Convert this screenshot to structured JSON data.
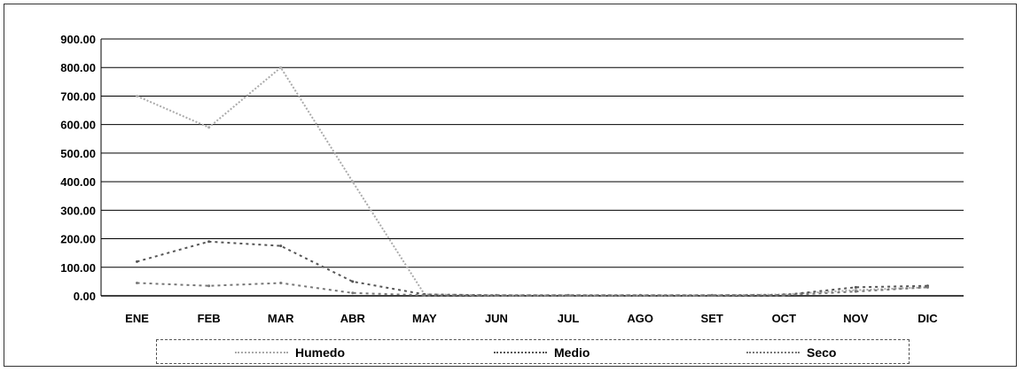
{
  "chart_data": {
    "type": "line",
    "title": "",
    "xlabel": "",
    "ylabel": "",
    "categories": [
      "ENE",
      "FEB",
      "MAR",
      "ABR",
      "MAY",
      "JUN",
      "JUL",
      "AGO",
      "SET",
      "OCT",
      "NOV",
      "DIC"
    ],
    "ylim": [
      0,
      900
    ],
    "yticks": [
      "0.00",
      "100.00",
      "200.00",
      "300.00",
      "400.00",
      "500.00",
      "600.00",
      "700.00",
      "800.00",
      "900.00"
    ],
    "grid": true,
    "legend_position": "bottom",
    "series": [
      {
        "name": "Humedo",
        "color": "#aaaaaa",
        "values": [
          700,
          590,
          800,
          400,
          5,
          2,
          2,
          2,
          2,
          5,
          20,
          30
        ]
      },
      {
        "name": "Medio",
        "color": "#555555",
        "values": [
          120,
          190,
          175,
          50,
          5,
          2,
          2,
          2,
          2,
          3,
          30,
          35
        ]
      },
      {
        "name": "Seco",
        "color": "#777777",
        "values": [
          45,
          35,
          45,
          10,
          2,
          2,
          2,
          2,
          2,
          2,
          15,
          30
        ]
      }
    ]
  }
}
